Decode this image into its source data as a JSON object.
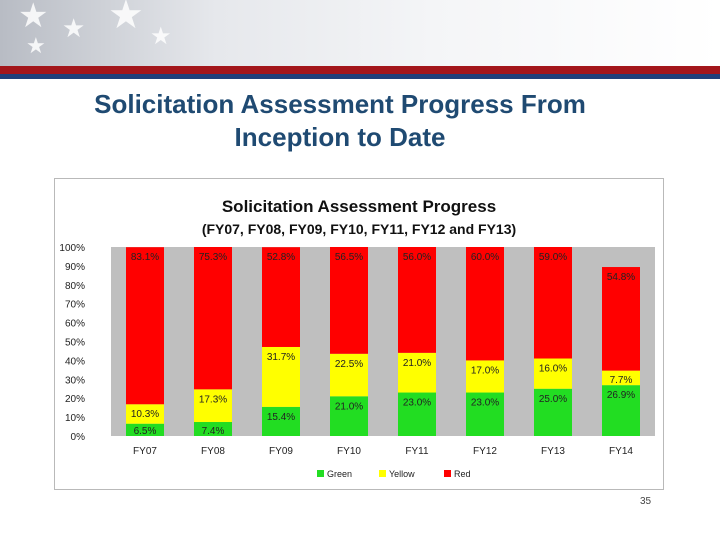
{
  "slide": {
    "title_line1": "Solicitation Assessment Progress From",
    "title_line2": "Inception to Date",
    "page_number": "35"
  },
  "colors": {
    "green": "#22dd22",
    "yellow": "#ffff00",
    "red": "#ff0000",
    "plot_background": "#bfbfbf",
    "title_blue": "#1f4a72",
    "banner_red": "#a3161b",
    "banner_blue": "#1f3f7a"
  },
  "chart_data": {
    "type": "bar",
    "stacked": true,
    "title": "Solicitation Assessment Progress",
    "subtitle": "(FY07, FY08, FY09, FY10, FY11, FY12 and FY13)",
    "categories": [
      "FY07",
      "FY08",
      "FY09",
      "FY10",
      "FY11",
      "FY12",
      "FY13",
      "FY14"
    ],
    "series": [
      {
        "name": "Green",
        "color": "green",
        "values": [
          6.5,
          7.4,
          15.4,
          21.0,
          23.0,
          23.0,
          25.0,
          26.9
        ],
        "labels": [
          "6.5%",
          "7.4%",
          "15.4%",
          "21.0%",
          "23.0%",
          "23.0%",
          "25.0%",
          "26.9%"
        ]
      },
      {
        "name": "Yellow",
        "color": "yellow",
        "values": [
          10.3,
          17.3,
          31.7,
          22.5,
          21.0,
          17.0,
          16.0,
          7.7
        ],
        "labels": [
          "10.3%",
          "17.3%",
          "31.7%",
          "22.5%",
          "21.0%",
          "17.0%",
          "16.0%",
          "7.7%"
        ]
      },
      {
        "name": "Red",
        "color": "red",
        "values": [
          83.1,
          75.3,
          52.8,
          56.5,
          56.0,
          60.0,
          59.0,
          54.8
        ],
        "labels": [
          "83.1%",
          "75.3%",
          "52.8%",
          "56.5%",
          "56.0%",
          "60.0%",
          "59.0%",
          "54.8%"
        ]
      }
    ],
    "ylim": [
      0,
      100
    ],
    "yticks": [
      "0%",
      "10%",
      "20%",
      "30%",
      "40%",
      "50%",
      "60%",
      "70%",
      "80%",
      "90%",
      "100%"
    ],
    "legend_position": "bottom",
    "grid": false
  }
}
